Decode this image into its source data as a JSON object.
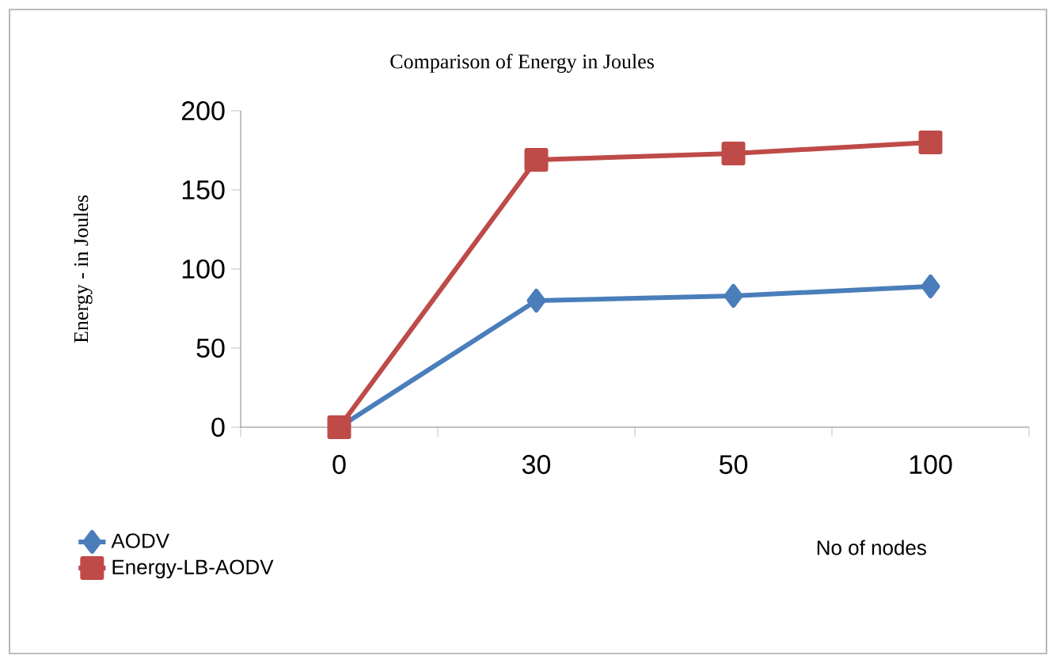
{
  "chart_data": {
    "type": "line",
    "title": "Comparison of Energy in Joules",
    "xlabel": "No of nodes",
    "ylabel": "Energy - in Joules",
    "categories": [
      "0",
      "30",
      "50",
      "100"
    ],
    "series": [
      {
        "name": "AODV",
        "color": "#4a7ebb",
        "values": [
          0,
          80,
          83,
          89
        ],
        "marker": "diamond"
      },
      {
        "name": "Energy-LB-AODV",
        "color": "#be4b48",
        "values": [
          0,
          169,
          173,
          180
        ],
        "marker": "square"
      }
    ],
    "ylim": [
      0,
      200
    ],
    "yticks": [
      0,
      50,
      100,
      150,
      200
    ],
    "grid": false,
    "legend": "bottom left",
    "line_style": "solid"
  }
}
